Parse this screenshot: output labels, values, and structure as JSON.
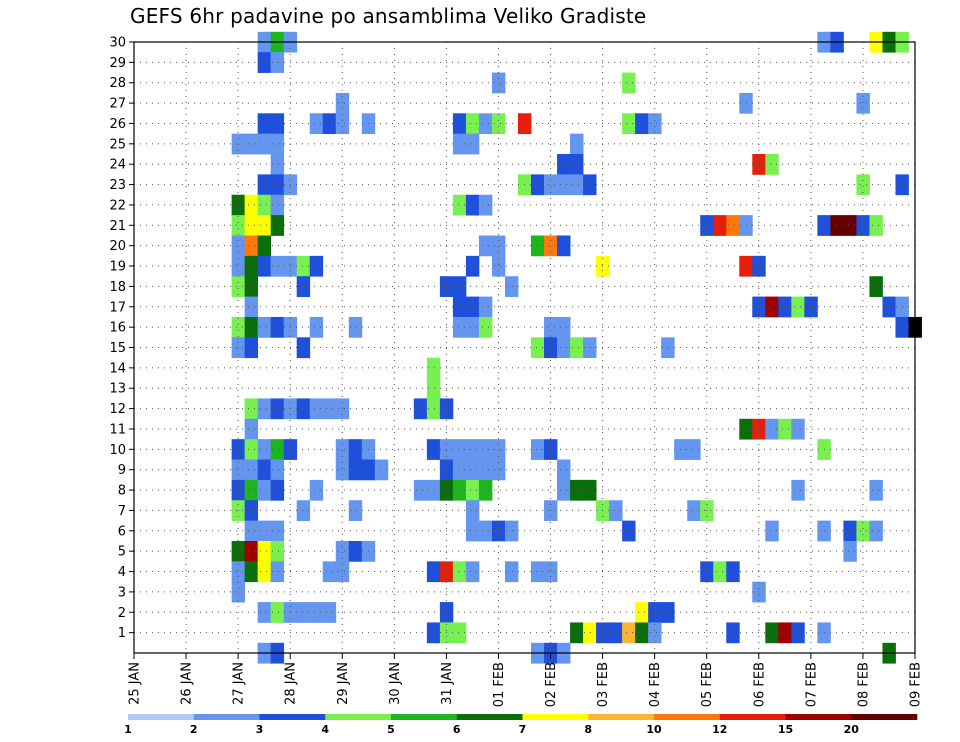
{
  "chart_data": {
    "type": "heatmap",
    "title": "GEFS 6hr padavine po ansamblima Veliko Gradiste",
    "xlabel": "",
    "ylabel": "",
    "x_tick_labels": [
      "25 JAN",
      "26 JAN",
      "27 JAN",
      "28 JAN",
      "29 JAN",
      "30 JAN",
      "31 JAN",
      "01 FEB",
      "02 FEB",
      "03 FEB",
      "04 FEB",
      "05 FEB",
      "06 FEB",
      "07 FEB",
      "08 FEB",
      "09 FEB"
    ],
    "y_tick_labels": [
      "1",
      "2",
      "3",
      "4",
      "5",
      "6",
      "7",
      "8",
      "9",
      "10",
      "11",
      "12",
      "13",
      "14",
      "15",
      "16",
      "17",
      "18",
      "19",
      "20",
      "21",
      "22",
      "23",
      "24",
      "25",
      "26",
      "27",
      "28",
      "29",
      "30"
    ],
    "x_range_steps": [
      0,
      60
    ],
    "steps_per_day": 4,
    "y_range_members": [
      0,
      30
    ],
    "grid": true,
    "colorbar": {
      "labels": [
        "1",
        "2",
        "3",
        "4",
        "5",
        "6",
        "7",
        "8",
        "10",
        "12",
        "15",
        "20"
      ],
      "colors": [
        "#b4c8f5",
        "#6496f0",
        "#1e50dc",
        "#78f050",
        "#1eb41e",
        "#0a6e0a",
        "#ffff00",
        "#ffb432",
        "#ff780a",
        "#e61e0a",
        "#a00000",
        "#640000"
      ]
    },
    "cells": [
      [
        30,
        10,
        1
      ],
      [
        30,
        11,
        4
      ],
      [
        30,
        12,
        1
      ],
      [
        30,
        53,
        1
      ],
      [
        30,
        54,
        2
      ],
      [
        30,
        57,
        6
      ],
      [
        30,
        58,
        5
      ],
      [
        30,
        59,
        3
      ],
      [
        29,
        10,
        2
      ],
      [
        29,
        11,
        1
      ],
      [
        28,
        28,
        1
      ],
      [
        28,
        38,
        3
      ],
      [
        27,
        16,
        1
      ],
      [
        27,
        47,
        1
      ],
      [
        27,
        56,
        1
      ],
      [
        26,
        10,
        2
      ],
      [
        26,
        11,
        2
      ],
      [
        26,
        14,
        1
      ],
      [
        26,
        15,
        2
      ],
      [
        26,
        16,
        1
      ],
      [
        26,
        18,
        1
      ],
      [
        26,
        25,
        2
      ],
      [
        26,
        26,
        3
      ],
      [
        26,
        27,
        1
      ],
      [
        26,
        28,
        3
      ],
      [
        26,
        30,
        9
      ],
      [
        26,
        38,
        3
      ],
      [
        26,
        39,
        2
      ],
      [
        26,
        40,
        1
      ],
      [
        25,
        8,
        1
      ],
      [
        25,
        9,
        1
      ],
      [
        25,
        10,
        1
      ],
      [
        25,
        11,
        1
      ],
      [
        25,
        25,
        1
      ],
      [
        25,
        26,
        1
      ],
      [
        25,
        34,
        1
      ],
      [
        24,
        11,
        1
      ],
      [
        24,
        33,
        2
      ],
      [
        24,
        34,
        2
      ],
      [
        24,
        48,
        9
      ],
      [
        24,
        49,
        3
      ],
      [
        23,
        10,
        2
      ],
      [
        23,
        11,
        2
      ],
      [
        23,
        12,
        1
      ],
      [
        23,
        30,
        3
      ],
      [
        23,
        31,
        2
      ],
      [
        23,
        32,
        1
      ],
      [
        23,
        33,
        1
      ],
      [
        23,
        34,
        1
      ],
      [
        23,
        35,
        2
      ],
      [
        23,
        56,
        3
      ],
      [
        23,
        59,
        2
      ],
      [
        22,
        8,
        5
      ],
      [
        22,
        9,
        6
      ],
      [
        22,
        10,
        3
      ],
      [
        22,
        11,
        1
      ],
      [
        22,
        25,
        3
      ],
      [
        22,
        26,
        2
      ],
      [
        22,
        27,
        1
      ],
      [
        21,
        8,
        3
      ],
      [
        21,
        9,
        6
      ],
      [
        21,
        10,
        6
      ],
      [
        21,
        11,
        5
      ],
      [
        21,
        44,
        2
      ],
      [
        21,
        45,
        9
      ],
      [
        21,
        46,
        8
      ],
      [
        21,
        47,
        1
      ],
      [
        21,
        53,
        2
      ],
      [
        21,
        54,
        11
      ],
      [
        21,
        55,
        11
      ],
      [
        21,
        56,
        2
      ],
      [
        21,
        57,
        3
      ],
      [
        20,
        8,
        1
      ],
      [
        20,
        9,
        8
      ],
      [
        20,
        10,
        5
      ],
      [
        20,
        27,
        1
      ],
      [
        20,
        28,
        1
      ],
      [
        20,
        31,
        4
      ],
      [
        20,
        32,
        8
      ],
      [
        20,
        33,
        2
      ],
      [
        19,
        8,
        1
      ],
      [
        19,
        9,
        5
      ],
      [
        19,
        10,
        2
      ],
      [
        19,
        11,
        1
      ],
      [
        19,
        12,
        1
      ],
      [
        19,
        13,
        3
      ],
      [
        19,
        14,
        2
      ],
      [
        19,
        26,
        2
      ],
      [
        19,
        28,
        1
      ],
      [
        19,
        36,
        6
      ],
      [
        19,
        47,
        9
      ],
      [
        19,
        48,
        2
      ],
      [
        18,
        8,
        3
      ],
      [
        18,
        9,
        5
      ],
      [
        18,
        13,
        2
      ],
      [
        18,
        24,
        2
      ],
      [
        18,
        25,
        2
      ],
      [
        18,
        29,
        1
      ],
      [
        18,
        57,
        5
      ],
      [
        17,
        9,
        1
      ],
      [
        17,
        25,
        2
      ],
      [
        17,
        26,
        2
      ],
      [
        17,
        27,
        1
      ],
      [
        17,
        48,
        2
      ],
      [
        17,
        49,
        10
      ],
      [
        17,
        50,
        2
      ],
      [
        17,
        51,
        3
      ],
      [
        17,
        52,
        2
      ],
      [
        17,
        58,
        2
      ],
      [
        17,
        59,
        1
      ],
      [
        16,
        8,
        3
      ],
      [
        16,
        9,
        5
      ],
      [
        16,
        10,
        1
      ],
      [
        16,
        11,
        2
      ],
      [
        16,
        12,
        1
      ],
      [
        16,
        14,
        1
      ],
      [
        16,
        17,
        1
      ],
      [
        16,
        25,
        1
      ],
      [
        16,
        26,
        1
      ],
      [
        16,
        27,
        3
      ],
      [
        16,
        32,
        1
      ],
      [
        16,
        33,
        1
      ],
      [
        16,
        59,
        2
      ],
      [
        16,
        60,
        12
      ],
      [
        15,
        8,
        1
      ],
      [
        15,
        9,
        2
      ],
      [
        15,
        13,
        2
      ],
      [
        15,
        31,
        3
      ],
      [
        15,
        32,
        2
      ],
      [
        15,
        33,
        1
      ],
      [
        15,
        34,
        3
      ],
      [
        15,
        35,
        1
      ],
      [
        15,
        41,
        1
      ],
      [
        14,
        23,
        3
      ],
      [
        13,
        23,
        3
      ],
      [
        12,
        9,
        3
      ],
      [
        12,
        10,
        1
      ],
      [
        12,
        11,
        2
      ],
      [
        12,
        12,
        1
      ],
      [
        12,
        13,
        2
      ],
      [
        12,
        14,
        1
      ],
      [
        12,
        15,
        1
      ],
      [
        12,
        16,
        1
      ],
      [
        12,
        22,
        2
      ],
      [
        12,
        23,
        3
      ],
      [
        12,
        24,
        2
      ],
      [
        11,
        9,
        1
      ],
      [
        11,
        47,
        5
      ],
      [
        11,
        48,
        9
      ],
      [
        11,
        49,
        1
      ],
      [
        11,
        50,
        3
      ],
      [
        11,
        51,
        1
      ],
      [
        10,
        8,
        2
      ],
      [
        10,
        9,
        3
      ],
      [
        10,
        10,
        1
      ],
      [
        10,
        11,
        4
      ],
      [
        10,
        12,
        2
      ],
      [
        10,
        16,
        1
      ],
      [
        10,
        17,
        2
      ],
      [
        10,
        18,
        1
      ],
      [
        10,
        23,
        2
      ],
      [
        10,
        24,
        1
      ],
      [
        10,
        25,
        1
      ],
      [
        10,
        26,
        1
      ],
      [
        10,
        27,
        1
      ],
      [
        10,
        28,
        1
      ],
      [
        10,
        31,
        1
      ],
      [
        10,
        32,
        2
      ],
      [
        10,
        42,
        1
      ],
      [
        10,
        43,
        1
      ],
      [
        10,
        53,
        3
      ],
      [
        9,
        8,
        1
      ],
      [
        9,
        9,
        1
      ],
      [
        9,
        10,
        2
      ],
      [
        9,
        11,
        1
      ],
      [
        9,
        16,
        1
      ],
      [
        9,
        17,
        2
      ],
      [
        9,
        18,
        2
      ],
      [
        9,
        19,
        1
      ],
      [
        9,
        24,
        2
      ],
      [
        9,
        25,
        1
      ],
      [
        9,
        26,
        1
      ],
      [
        9,
        27,
        1
      ],
      [
        9,
        28,
        1
      ],
      [
        9,
        33,
        1
      ],
      [
        8,
        8,
        2
      ],
      [
        8,
        9,
        4
      ],
      [
        8,
        10,
        1
      ],
      [
        8,
        11,
        2
      ],
      [
        8,
        14,
        1
      ],
      [
        8,
        22,
        1
      ],
      [
        8,
        23,
        1
      ],
      [
        8,
        24,
        5
      ],
      [
        8,
        25,
        4
      ],
      [
        8,
        26,
        3
      ],
      [
        8,
        27,
        4
      ],
      [
        8,
        33,
        1
      ],
      [
        8,
        34,
        5
      ],
      [
        8,
        35,
        5
      ],
      [
        8,
        51,
        1
      ],
      [
        8,
        57,
        1
      ],
      [
        7,
        8,
        3
      ],
      [
        7,
        9,
        2
      ],
      [
        7,
        13,
        1
      ],
      [
        7,
        17,
        1
      ],
      [
        7,
        26,
        1
      ],
      [
        7,
        32,
        1
      ],
      [
        7,
        36,
        3
      ],
      [
        7,
        37,
        1
      ],
      [
        7,
        43,
        1
      ],
      [
        7,
        44,
        3
      ],
      [
        6,
        9,
        1
      ],
      [
        6,
        10,
        1
      ],
      [
        6,
        11,
        1
      ],
      [
        6,
        26,
        1
      ],
      [
        6,
        27,
        1
      ],
      [
        6,
        28,
        2
      ],
      [
        6,
        29,
        1
      ],
      [
        6,
        38,
        2
      ],
      [
        6,
        49,
        1
      ],
      [
        6,
        53,
        1
      ],
      [
        6,
        55,
        2
      ],
      [
        6,
        56,
        3
      ],
      [
        6,
        57,
        1
      ],
      [
        5,
        8,
        5
      ],
      [
        5,
        9,
        10
      ],
      [
        5,
        10,
        6
      ],
      [
        5,
        11,
        3
      ],
      [
        5,
        16,
        1
      ],
      [
        5,
        17,
        2
      ],
      [
        5,
        18,
        1
      ],
      [
        5,
        55,
        1
      ],
      [
        4,
        8,
        1
      ],
      [
        4,
        9,
        5
      ],
      [
        4,
        10,
        6
      ],
      [
        4,
        11,
        1
      ],
      [
        4,
        15,
        1
      ],
      [
        4,
        16,
        1
      ],
      [
        4,
        23,
        2
      ],
      [
        4,
        24,
        9
      ],
      [
        4,
        25,
        3
      ],
      [
        4,
        26,
        1
      ],
      [
        4,
        29,
        1
      ],
      [
        4,
        31,
        1
      ],
      [
        4,
        32,
        1
      ],
      [
        4,
        44,
        2
      ],
      [
        4,
        45,
        3
      ],
      [
        4,
        46,
        2
      ],
      [
        3,
        8,
        1
      ],
      [
        3,
        48,
        1
      ],
      [
        2,
        10,
        1
      ],
      [
        2,
        11,
        3
      ],
      [
        2,
        12,
        1
      ],
      [
        2,
        13,
        1
      ],
      [
        2,
        14,
        1
      ],
      [
        2,
        15,
        1
      ],
      [
        2,
        24,
        2
      ],
      [
        2,
        39,
        6
      ],
      [
        2,
        40,
        2
      ],
      [
        2,
        41,
        2
      ],
      [
        1,
        23,
        2
      ],
      [
        1,
        24,
        3
      ],
      [
        1,
        25,
        3
      ],
      [
        1,
        34,
        5
      ],
      [
        1,
        35,
        6
      ],
      [
        1,
        36,
        2
      ],
      [
        1,
        37,
        2
      ],
      [
        1,
        38,
        7
      ],
      [
        1,
        39,
        5
      ],
      [
        1,
        40,
        1
      ],
      [
        1,
        46,
        2
      ],
      [
        1,
        49,
        5
      ],
      [
        1,
        50,
        10
      ],
      [
        1,
        51,
        2
      ],
      [
        1,
        53,
        1
      ],
      [
        0,
        10,
        1
      ],
      [
        0,
        11,
        2
      ],
      [
        0,
        31,
        1
      ],
      [
        0,
        32,
        2
      ],
      [
        0,
        33,
        1
      ],
      [
        0,
        58,
        5
      ]
    ]
  }
}
